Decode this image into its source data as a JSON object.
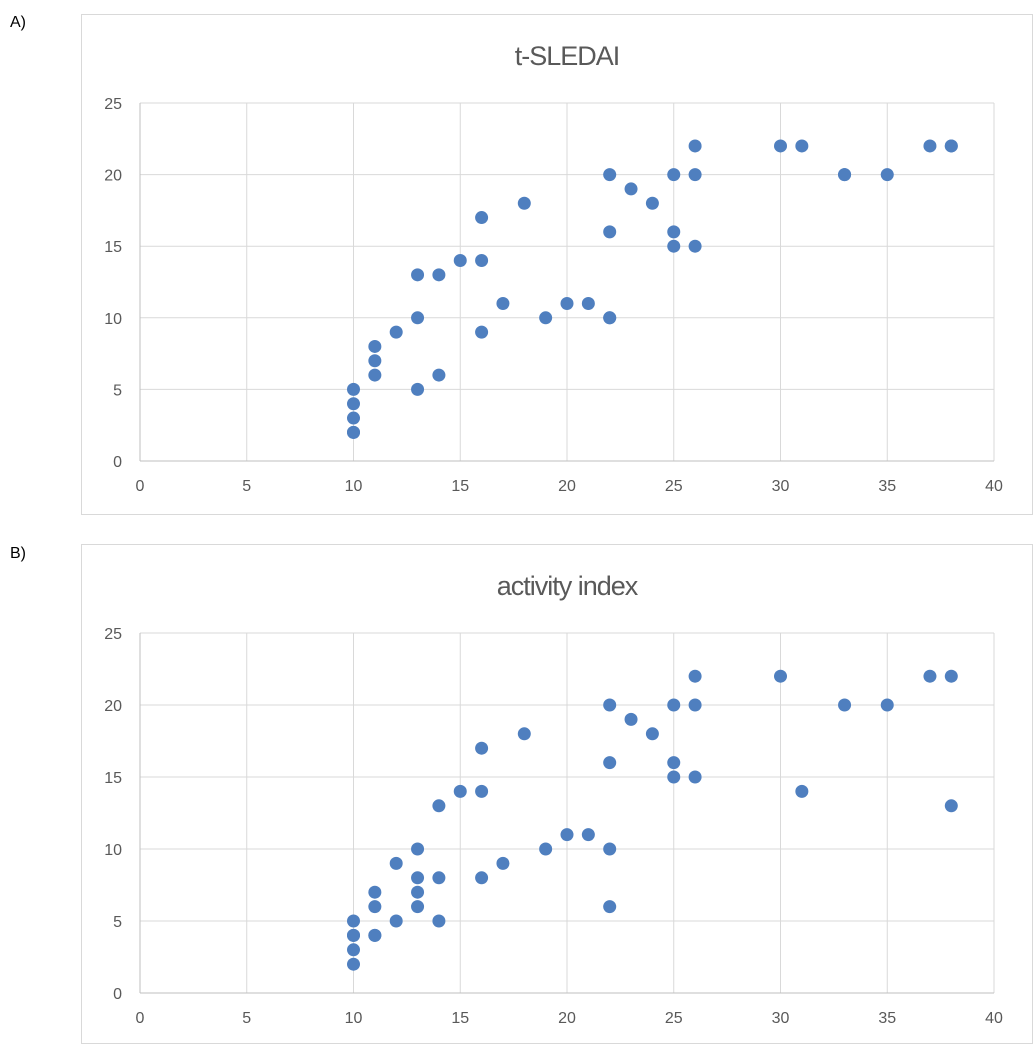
{
  "panels": [
    {
      "label": "A)"
    },
    {
      "label": "B)"
    }
  ],
  "colors": {
    "marker": "#4f7fbf",
    "grid": "#d9d9d9",
    "text": "#595959"
  },
  "chart_data": [
    {
      "type": "scatter",
      "title": "t-SLEDAI",
      "xlabel": "",
      "ylabel": "",
      "xlim": [
        0,
        40
      ],
      "ylim": [
        0,
        25
      ],
      "xticks": [
        0,
        5,
        10,
        15,
        20,
        25,
        30,
        35,
        40
      ],
      "yticks": [
        0,
        5,
        10,
        15,
        20,
        25
      ],
      "grid": true,
      "series": [
        {
          "x": [
            10,
            10,
            10,
            10,
            10,
            11,
            11,
            11,
            12,
            13,
            13,
            13,
            14,
            14,
            15,
            16,
            16,
            16,
            17,
            18,
            19,
            20,
            21,
            22,
            22,
            22,
            22,
            23,
            24,
            25,
            25,
            25,
            26,
            26,
            26,
            30,
            31,
            33,
            33,
            35,
            37,
            38,
            38
          ],
          "y": [
            2,
            2,
            3,
            4,
            5,
            6,
            7,
            8,
            9,
            5,
            10,
            13,
            6,
            13,
            14,
            9,
            14,
            17,
            11,
            18,
            10,
            11,
            11,
            10,
            16,
            20,
            10,
            19,
            18,
            15,
            16,
            20,
            15,
            20,
            22,
            22,
            22,
            20,
            20,
            20,
            22,
            22,
            22
          ]
        }
      ]
    },
    {
      "type": "scatter",
      "title": "activity index",
      "xlabel": "",
      "ylabel": "",
      "xlim": [
        0,
        40
      ],
      "ylim": [
        0,
        25
      ],
      "xticks": [
        0,
        5,
        10,
        15,
        20,
        25,
        30,
        35,
        40
      ],
      "yticks": [
        0,
        5,
        10,
        15,
        20,
        25
      ],
      "grid": true,
      "series": [
        {
          "x": [
            10,
            10,
            10,
            10,
            10,
            11,
            11,
            11,
            11,
            12,
            12,
            13,
            13,
            13,
            13,
            14,
            14,
            14,
            15,
            16,
            16,
            16,
            17,
            18,
            19,
            20,
            21,
            22,
            22,
            22,
            22,
            23,
            24,
            25,
            25,
            25,
            26,
            26,
            26,
            30,
            31,
            33,
            35,
            37,
            38,
            38
          ],
          "y": [
            2,
            3,
            4,
            4,
            5,
            4,
            4,
            6,
            7,
            5,
            9,
            6,
            7,
            8,
            10,
            5,
            8,
            13,
            14,
            8,
            14,
            17,
            9,
            18,
            10,
            11,
            11,
            6,
            10,
            16,
            20,
            19,
            18,
            15,
            16,
            20,
            15,
            20,
            22,
            22,
            14,
            20,
            20,
            22,
            13,
            22
          ]
        }
      ]
    }
  ]
}
